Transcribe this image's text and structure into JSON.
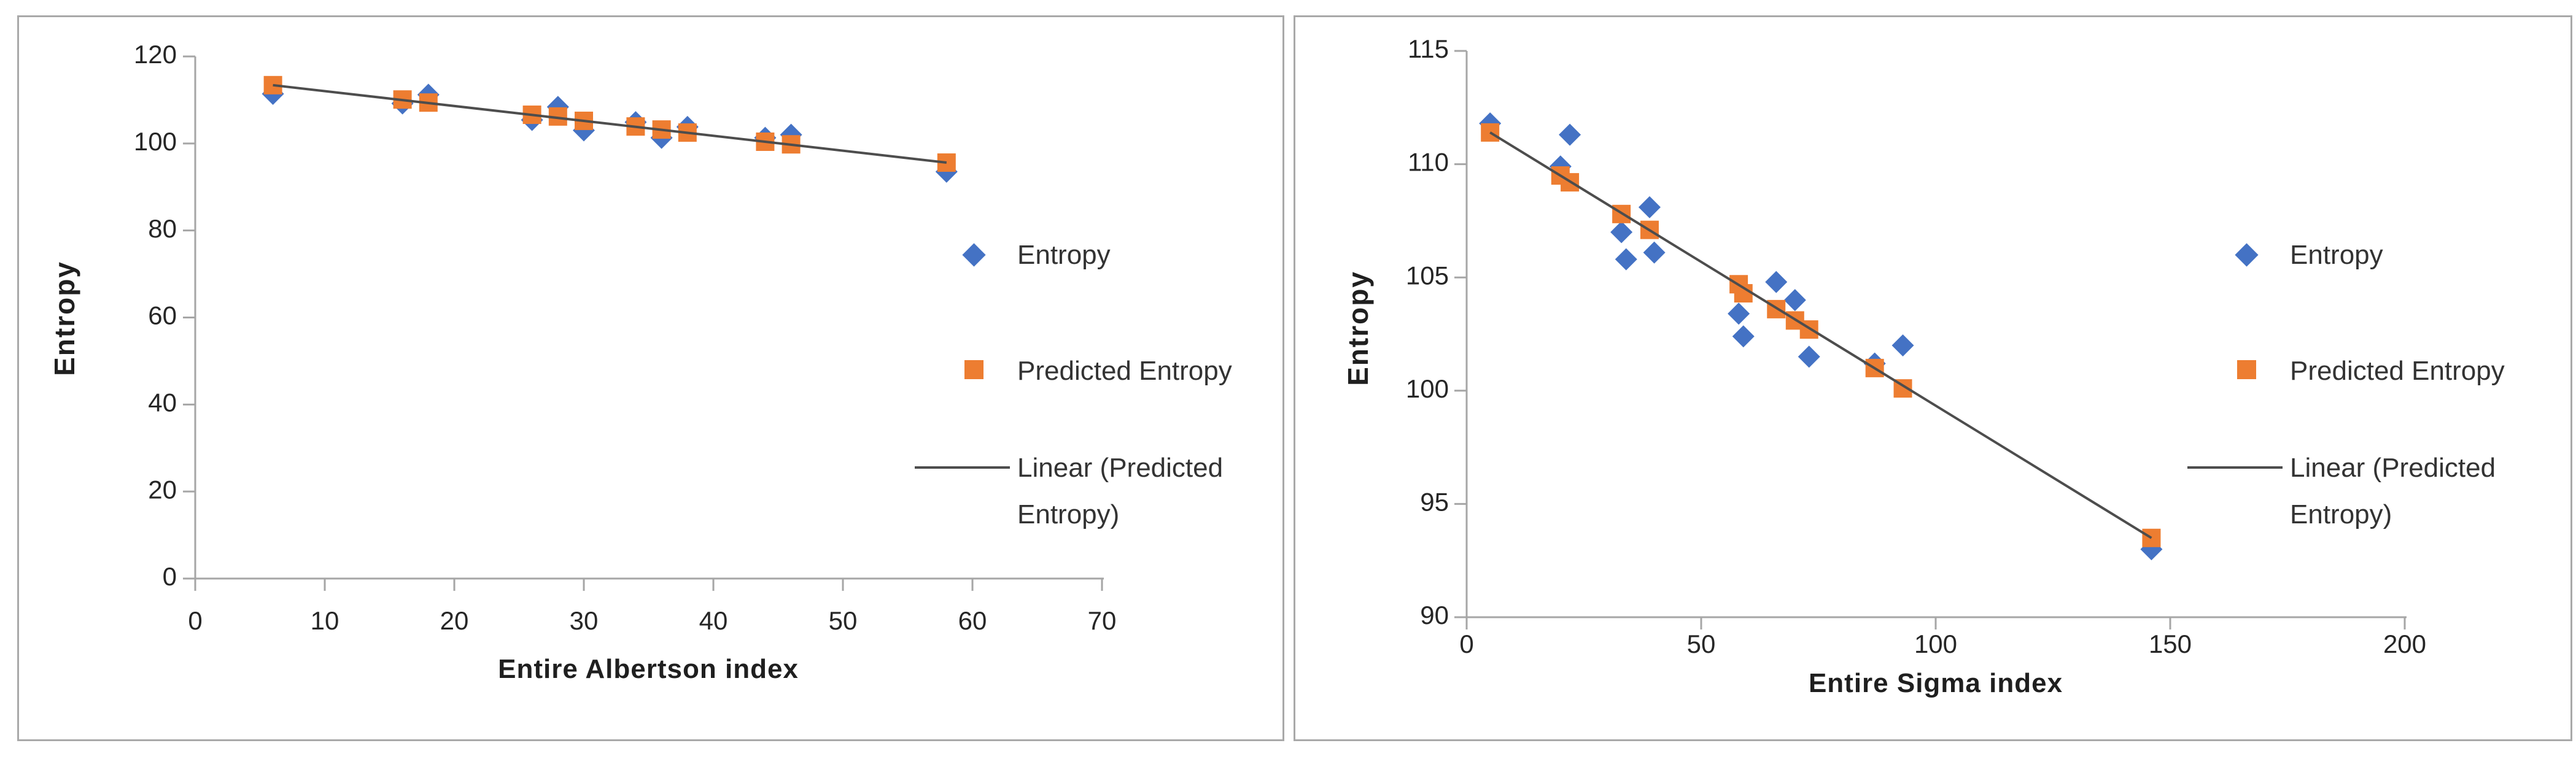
{
  "page": {
    "background": "#ffffff"
  },
  "colors": {
    "entropy_marker": "#4472C4",
    "predicted_marker": "#ED7D31",
    "trend_line": "#4D4D4D",
    "axis_line": "#A6A6A6",
    "tick_label": "#262626",
    "axis_title": "#1F1F1F",
    "legend_text": "#333333",
    "panel_border": "#A9A9A9"
  },
  "chart_data": [
    {
      "type": "scatter",
      "xlabel": "Entire Albertson index",
      "ylabel": "Entropy",
      "xlim": [
        0,
        70
      ],
      "ylim": [
        0,
        120
      ],
      "x_ticks": [
        0,
        10,
        20,
        30,
        40,
        50,
        60,
        70
      ],
      "y_ticks": [
        0,
        20,
        40,
        60,
        80,
        100,
        120
      ],
      "grid": false,
      "legend_position": "right",
      "legend": [
        {
          "label": "Entropy",
          "marker": "diamond",
          "color": "#4472C4",
          "label_lines": [
            "Entropy"
          ]
        },
        {
          "label": "Predicted Entropy",
          "marker": "square",
          "color": "#ED7D31",
          "label_lines": [
            "Predicted Entropy"
          ]
        },
        {
          "label": "Linear (Predicted Entropy)",
          "marker": "line",
          "color": "#4D4D4D",
          "label_lines": [
            "Linear (Predicted",
            "Entropy)"
          ]
        }
      ],
      "series": [
        {
          "name": "Entropy",
          "marker": "diamond",
          "color": "#4472C4",
          "points": [
            [
              6,
              111.4
            ],
            [
              16,
              109.2
            ],
            [
              18,
              111.2
            ],
            [
              26,
              105.4
            ],
            [
              28,
              108.4
            ],
            [
              30,
              103.0
            ],
            [
              34,
              104.9
            ],
            [
              36,
              101.3
            ],
            [
              38,
              103.8
            ],
            [
              44,
              101.3
            ],
            [
              46,
              102.0
            ],
            [
              58,
              93.5
            ]
          ]
        },
        {
          "name": "Predicted Entropy",
          "marker": "square",
          "color": "#ED7D31",
          "points": [
            [
              6,
              113.4
            ],
            [
              16,
              110.1
            ],
            [
              18,
              109.4
            ],
            [
              26,
              106.6
            ],
            [
              28,
              106.2
            ],
            [
              30,
              105.2
            ],
            [
              34,
              103.9
            ],
            [
              36,
              103.2
            ],
            [
              38,
              102.5
            ],
            [
              44,
              100.4
            ],
            [
              46,
              99.8
            ],
            [
              58,
              95.6
            ]
          ]
        },
        {
          "name": "Linear (Predicted Entropy)",
          "marker": "line",
          "color": "#4D4D4D",
          "points": [
            [
              6,
              113.4
            ],
            [
              58,
              95.6
            ]
          ]
        }
      ]
    },
    {
      "type": "scatter",
      "xlabel": "Entire Sigma index",
      "ylabel": "Entropy",
      "xlim": [
        0,
        200
      ],
      "ylim": [
        90,
        115
      ],
      "x_ticks": [
        0,
        50,
        100,
        150,
        200
      ],
      "y_ticks": [
        90,
        95,
        100,
        105,
        110,
        115
      ],
      "grid": false,
      "legend_position": "right",
      "legend": [
        {
          "label": "Entropy",
          "marker": "diamond",
          "color": "#4472C4",
          "label_lines": [
            "Entropy"
          ]
        },
        {
          "label": "Predicted Entropy",
          "marker": "square",
          "color": "#ED7D31",
          "label_lines": [
            "Predicted Entropy"
          ]
        },
        {
          "label": "Linear (Predicted Entropy)",
          "marker": "line",
          "color": "#4D4D4D",
          "label_lines": [
            "Linear (Predicted",
            "Entropy)"
          ]
        }
      ],
      "series": [
        {
          "name": "Entropy",
          "marker": "diamond",
          "color": "#4472C4",
          "points": [
            [
              5,
              111.8
            ],
            [
              20,
              109.9
            ],
            [
              22,
              111.3
            ],
            [
              33,
              107.0
            ],
            [
              34,
              105.8
            ],
            [
              39,
              108.1
            ],
            [
              40,
              106.1
            ],
            [
              58,
              103.4
            ],
            [
              59,
              102.4
            ],
            [
              66,
              104.8
            ],
            [
              70,
              104.0
            ],
            [
              73,
              101.5
            ],
            [
              87,
              101.2
            ],
            [
              93,
              102.0
            ],
            [
              146,
              93.0
            ]
          ]
        },
        {
          "name": "Predicted Entropy",
          "marker": "square",
          "color": "#ED7D31",
          "points": [
            [
              5,
              111.4
            ],
            [
              20,
              109.5
            ],
            [
              22,
              109.2
            ],
            [
              33,
              107.8
            ],
            [
              39,
              107.1
            ],
            [
              58,
              104.7
            ],
            [
              59,
              104.3
            ],
            [
              66,
              103.6
            ],
            [
              70,
              103.1
            ],
            [
              73,
              102.7
            ],
            [
              87,
              101.0
            ],
            [
              93,
              100.1
            ],
            [
              146,
              93.5
            ]
          ]
        },
        {
          "name": "Linear (Predicted Entropy)",
          "marker": "line",
          "color": "#4D4D4D",
          "points": [
            [
              5,
              111.4
            ],
            [
              146,
              93.5
            ]
          ]
        }
      ]
    }
  ]
}
